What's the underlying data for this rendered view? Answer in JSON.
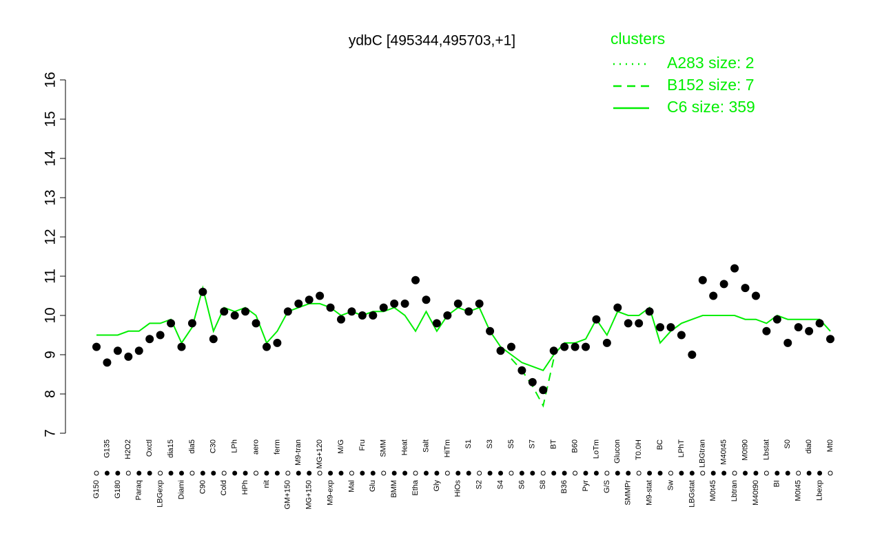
{
  "chart_data": {
    "type": "line",
    "title": "ydbC [495344,495703,+1]",
    "categories": [
      "G150",
      "G135",
      "G180",
      "H2O2",
      "Paraq",
      "Oxctl",
      "LBGexp",
      "dia15",
      "Diami",
      "dia5",
      "C90",
      "C30",
      "Cold",
      "LPh",
      "HPh",
      "aero",
      "nit",
      "ferm",
      "GM+150",
      "M9-tran",
      "MG+150",
      "MG+120",
      "M9-exp",
      "M/G",
      "Mal",
      "Fru",
      "Glu",
      "SMM",
      "BMM",
      "Heat",
      "Etha",
      "Salt",
      "Gly",
      "HiTm",
      "HiOs",
      "S1",
      "S2",
      "S3",
      "S4",
      "S5",
      "S6",
      "S7",
      "S8",
      "BT",
      "B36",
      "B60",
      "Pyr",
      "LoTm",
      "G/S",
      "Glucon",
      "SMMPr",
      "T0.0H",
      "M9-stat",
      "BC",
      "Sw",
      "LPhT",
      "LBGstat",
      "LBGtran",
      "M0t45",
      "M40t45",
      "Lbtran",
      "M0t90",
      "M40t90",
      "Lbstat",
      "BI",
      "S0",
      "M0t45",
      "dia0",
      "Lbexp",
      "Mt0"
    ],
    "series": [
      {
        "color": "#000000",
        "values": [
          9.2,
          8.8,
          9.1,
          8.95,
          9.1,
          9.4,
          9.5,
          9.8,
          9.2,
          9.8,
          10.6,
          9.4,
          10.1,
          10.0,
          10.1,
          9.8,
          9.2,
          9.3,
          10.1,
          10.3,
          10.4,
          10.5,
          10.2,
          9.9,
          10.1,
          10.0,
          10.0,
          10.2,
          10.3,
          10.3,
          10.9,
          10.4,
          9.8,
          10.0,
          10.3,
          10.1,
          10.3,
          9.6,
          9.1,
          9.2,
          8.6,
          8.3,
          8.1,
          9.1,
          9.2,
          9.2,
          9.2,
          9.9,
          9.3,
          10.2,
          9.8,
          9.8,
          10.1,
          9.7,
          9.7,
          9.5,
          9.0,
          10.9,
          10.5,
          10.8,
          11.2,
          10.7,
          10.5,
          9.6,
          9.9,
          9.3,
          9.7,
          9.6,
          9.8,
          9.4
        ]
      }
    ],
    "lines": [
      {
        "name": "C6 size: 359",
        "color": "#00ee00",
        "dash": "solid",
        "values": [
          9.5,
          9.5,
          9.5,
          9.6,
          9.6,
          9.8,
          9.8,
          9.9,
          9.3,
          9.7,
          10.7,
          9.6,
          10.2,
          10.1,
          10.2,
          10.0,
          9.3,
          9.6,
          10.1,
          10.2,
          10.3,
          10.3,
          10.2,
          10.0,
          10.1,
          10.0,
          10.1,
          10.1,
          10.2,
          10.0,
          9.6,
          10.1,
          9.6,
          10.0,
          10.2,
          10.1,
          10.2,
          9.6,
          9.2,
          9.0,
          8.8,
          8.7,
          8.6,
          9.0,
          9.3,
          9.3,
          9.4,
          9.9,
          9.5,
          10.1,
          10.0,
          10.0,
          10.2,
          9.3,
          9.6,
          9.8,
          9.9,
          10.0,
          10.0,
          10.0,
          10.0,
          9.9,
          9.9,
          9.8,
          10.0,
          9.9,
          9.9,
          9.9,
          9.9,
          9.6
        ]
      },
      {
        "name": "B152 size: 7",
        "color": "#00ee00",
        "dash": "dashed",
        "values": [
          null,
          null,
          null,
          null,
          null,
          null,
          null,
          null,
          null,
          null,
          null,
          null,
          null,
          null,
          null,
          null,
          null,
          null,
          null,
          null,
          null,
          null,
          null,
          null,
          null,
          null,
          null,
          null,
          null,
          null,
          null,
          null,
          null,
          null,
          null,
          null,
          null,
          null,
          null,
          8.9,
          8.6,
          8.2,
          7.7,
          8.9,
          null,
          null,
          null,
          null,
          null,
          null,
          null,
          null,
          null,
          null,
          null,
          null,
          null,
          null,
          null,
          null,
          null,
          null,
          null,
          null,
          null,
          null,
          null,
          null,
          null,
          null
        ]
      }
    ],
    "legend": {
      "title": "clusters",
      "entries": [
        {
          "name": "A283 size: 2",
          "color": "#00ee00",
          "dash": "dotted"
        },
        {
          "name": "B152 size: 7",
          "color": "#00ee00",
          "dash": "dashed"
        },
        {
          "name": "C6 size: 359",
          "color": "#00ee00",
          "dash": "solid"
        }
      ]
    },
    "ylim": [
      7,
      16
    ],
    "yticks": [
      7,
      8,
      9,
      10,
      11,
      12,
      13,
      14,
      15,
      16
    ]
  }
}
